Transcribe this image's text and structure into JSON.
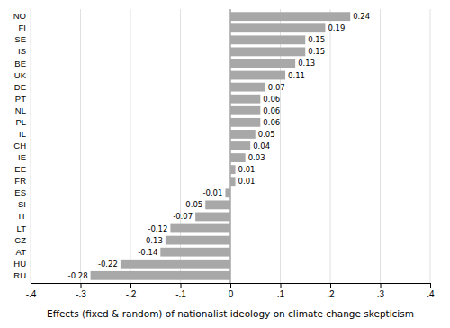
{
  "chart_data": {
    "type": "bar",
    "orientation": "horizontal",
    "categories": [
      "NO",
      "FI",
      "SE",
      "IS",
      "BE",
      "UK",
      "DE",
      "PT",
      "NL",
      "PL",
      "IL",
      "CH",
      "IE",
      "EE",
      "FR",
      "ES",
      "SI",
      "IT",
      "LT",
      "CZ",
      "AT",
      "HU",
      "RU"
    ],
    "values": [
      0.24,
      0.19,
      0.15,
      0.15,
      0.13,
      0.11,
      0.07,
      0.06,
      0.06,
      0.06,
      0.05,
      0.04,
      0.03,
      0.01,
      0.01,
      -0.01,
      -0.05,
      -0.07,
      -0.12,
      -0.13,
      -0.14,
      -0.22,
      -0.28
    ],
    "color": "#a8a8a8",
    "xlabel": "Effects (fixed & random) of nationalist ideology on climate change skepticism",
    "xlim": [
      -0.4,
      0.4
    ],
    "xticks": [
      {
        "value": -0.4,
        "label": "-.4"
      },
      {
        "value": -0.3,
        "label": "-.3"
      },
      {
        "value": -0.2,
        "label": "-.2"
      },
      {
        "value": -0.1,
        "label": "-.1"
      },
      0,
      {
        "value": 0.1,
        "label": ".1"
      },
      {
        "value": 0.2,
        "label": ".2"
      },
      {
        "value": 0.3,
        "label": ".3"
      },
      {
        "value": 0.4,
        "label": ".4"
      }
    ],
    "grid": true,
    "data_labels": true
  }
}
